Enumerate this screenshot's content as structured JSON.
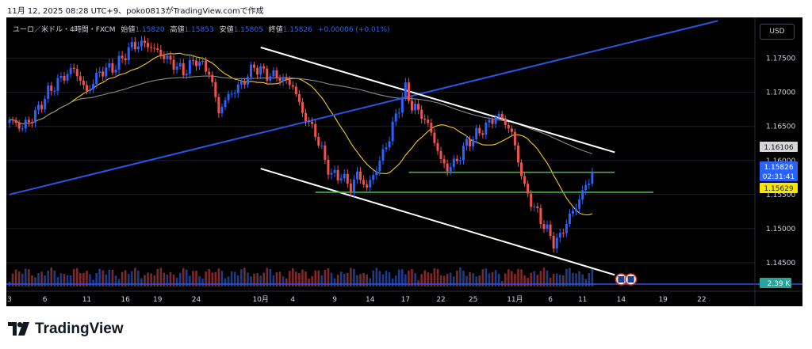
{
  "caption": "11月 12, 2025 08:28 UTC+9、poko0813がTradingView.comで作成",
  "legend": {
    "symbol": "ユーロ／米ドル・4時間・FXCM",
    "open_label": "始値",
    "open": "1.15820",
    "high_label": "高値",
    "high": "1.15853",
    "low_label": "安値",
    "low": "1.15805",
    "close_label": "終値",
    "close": "1.15826",
    "change": "+0.00006 (+0.01%)"
  },
  "currency_button": "USD",
  "brand": "TradingView",
  "colors": {
    "up": "#2962ff",
    "down": "#ef5350",
    "ma_fast": "#f7c81e",
    "ma_slow": "#8a8a8a",
    "trendline": "#2955e6",
    "channel": "#ffffff",
    "support": "#4caf50"
  },
  "chart_data": {
    "type": "candlestick",
    "symbol": "EUR/USD",
    "timeframe": "4h",
    "ylim": [
      1.1415,
      1.181
    ],
    "y_ticks": [
      "1.17500",
      "1.17000",
      "1.16500",
      "1.16000",
      "1.15500",
      "1.15000",
      "1.14500"
    ],
    "x_ticks": [
      "3",
      "6",
      "11",
      "16",
      "19",
      "24",
      "10月",
      "4",
      "9",
      "14",
      "17",
      "22",
      "25",
      "11月",
      "6",
      "11",
      "14",
      "19",
      "22"
    ],
    "x_tick_index": [
      0,
      11,
      24,
      36,
      46,
      58,
      78,
      88,
      101,
      112,
      123,
      134,
      144,
      157,
      168,
      178,
      190,
      203,
      215
    ],
    "last_index": 181,
    "price_path": [
      [
        0,
        1.166
      ],
      [
        4,
        1.1648
      ],
      [
        8,
        1.1668
      ],
      [
        12,
        1.17
      ],
      [
        16,
        1.172
      ],
      [
        20,
        1.1735
      ],
      [
        24,
        1.17
      ],
      [
        28,
        1.173
      ],
      [
        33,
        1.1738
      ],
      [
        38,
        1.1768
      ],
      [
        42,
        1.1772
      ],
      [
        46,
        1.176
      ],
      [
        50,
        1.1745
      ],
      [
        54,
        1.173
      ],
      [
        58,
        1.1748
      ],
      [
        62,
        1.173
      ],
      [
        65,
        1.1672
      ],
      [
        68,
        1.1695
      ],
      [
        72,
        1.1712
      ],
      [
        76,
        1.1738
      ],
      [
        80,
        1.1726
      ],
      [
        84,
        1.1722
      ],
      [
        88,
        1.171
      ],
      [
        91,
        1.167
      ],
      [
        95,
        1.164
      ],
      [
        98,
        1.16
      ],
      [
        100,
        1.1578
      ],
      [
        103,
        1.1578
      ],
      [
        106,
        1.156
      ],
      [
        108,
        1.158
      ],
      [
        111,
        1.156
      ],
      [
        113,
        1.1578
      ],
      [
        116,
        1.161
      ],
      [
        118,
        1.1635
      ],
      [
        121,
        1.168
      ],
      [
        123,
        1.1705
      ],
      [
        125,
        1.168
      ],
      [
        128,
        1.1668
      ],
      [
        131,
        1.1642
      ],
      [
        134,
        1.16
      ],
      [
        136,
        1.1588
      ],
      [
        139,
        1.16
      ],
      [
        142,
        1.1625
      ],
      [
        145,
        1.1638
      ],
      [
        148,
        1.165
      ],
      [
        151,
        1.1665
      ],
      [
        153,
        1.1662
      ],
      [
        156,
        1.164
      ],
      [
        158,
        1.16
      ],
      [
        160,
        1.156
      ],
      [
        163,
        1.153
      ],
      [
        166,
        1.1505
      ],
      [
        169,
        1.148
      ],
      [
        171,
        1.1487
      ],
      [
        173,
        1.151
      ],
      [
        176,
        1.1532
      ],
      [
        178,
        1.1555
      ],
      [
        180,
        1.1568
      ],
      [
        182,
        1.1582
      ],
      [
        183,
        1.1601
      ],
      [
        184,
        1.1583
      ]
    ],
    "moving_averages": [
      {
        "name": "",
        "color": "#f7c81e",
        "period_bars": 20
      },
      {
        "name": "",
        "color": "#8a8a8a",
        "period_bars": 100
      }
    ],
    "volume": {
      "label": "2.39 K"
    },
    "price_labels": [
      {
        "value": "1.16106",
        "role": "ma-slow",
        "bg": "#d6d6d6",
        "fg": "#131722"
      },
      {
        "value": "1.15826",
        "role": "last-price",
        "bg": "#2962ff",
        "fg": "#ffffff"
      },
      {
        "value": "02:31:41",
        "role": "countdown",
        "bg": "#2962ff",
        "fg": "#ffffff"
      },
      {
        "value": "1.15629",
        "role": "ma-fast",
        "bg": "#f7e600",
        "fg": "#131722"
      }
    ],
    "drawings": {
      "rising_trendline": [
        [
          0,
          1.155
        ],
        [
          220,
          1.1805
        ]
      ],
      "channel_upper": [
        [
          78,
          1.1766
        ],
        [
          188,
          1.1612
        ]
      ],
      "channel_lower": [
        [
          78,
          1.1588
        ],
        [
          188,
          1.1432
        ]
      ],
      "support_upper": {
        "value": 1.15826,
        "from": 124,
        "to": 188
      },
      "support_lower": {
        "value": 1.15533,
        "from": 95,
        "to": 200
      }
    },
    "events": [
      {
        "index": 190,
        "label": "US"
      },
      {
        "index": 193,
        "label": "US"
      }
    ]
  }
}
